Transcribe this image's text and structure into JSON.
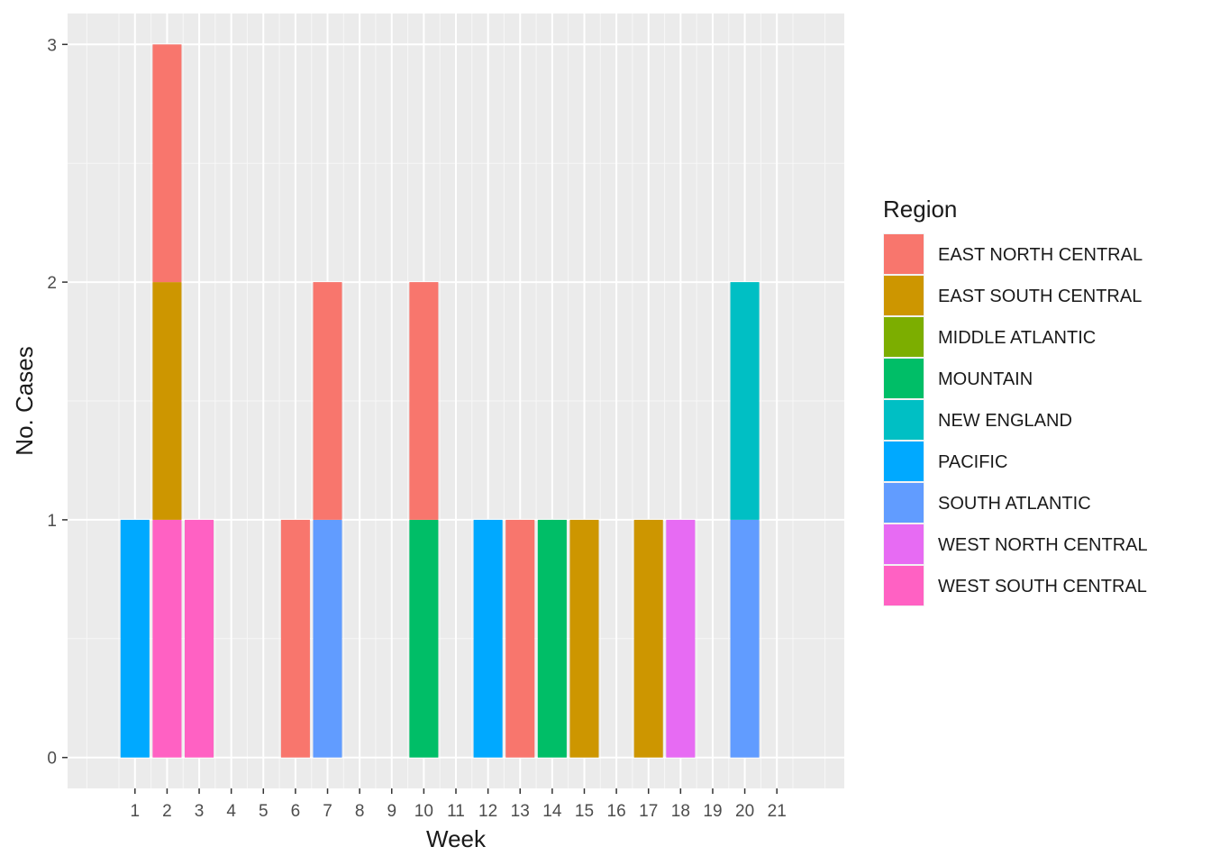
{
  "chart_data": {
    "type": "bar",
    "stacked": true,
    "title": "",
    "xlabel": "Week",
    "ylabel": "No. Cases",
    "categories": [
      "1",
      "2",
      "3",
      "4",
      "5",
      "6",
      "7",
      "8",
      "9",
      "10",
      "11",
      "12",
      "13",
      "14",
      "15",
      "16",
      "17",
      "18",
      "19",
      "20",
      "21"
    ],
    "ylim": [
      -0.13,
      3.13
    ],
    "yticks": [
      0,
      1,
      2,
      3
    ],
    "grid": true,
    "legend_title": "Region",
    "legend_position": "right",
    "series": [
      {
        "name": "EAST NORTH CENTRAL",
        "color": "#F8766D",
        "values": [
          0,
          1,
          0,
          0,
          0,
          1,
          1,
          0,
          0,
          1,
          0,
          0,
          1,
          0,
          0,
          0,
          0,
          0,
          0,
          0,
          0
        ]
      },
      {
        "name": "EAST SOUTH CENTRAL",
        "color": "#CD9600",
        "values": [
          0,
          1,
          0,
          0,
          0,
          0,
          0,
          0,
          0,
          0,
          0,
          0,
          0,
          0,
          1,
          0,
          1,
          0,
          0,
          0,
          0
        ]
      },
      {
        "name": "MIDDLE ATLANTIC",
        "color": "#7CAE00",
        "values": [
          0,
          0,
          0,
          0,
          0,
          0,
          0,
          0,
          0,
          0,
          0,
          0,
          0,
          0,
          0,
          0,
          0,
          0,
          0,
          0,
          0
        ]
      },
      {
        "name": "MOUNTAIN",
        "color": "#00BE67",
        "values": [
          0,
          0,
          0,
          0,
          0,
          0,
          0,
          0,
          0,
          1,
          0,
          0,
          0,
          1,
          0,
          0,
          0,
          0,
          0,
          0,
          0
        ]
      },
      {
        "name": "NEW ENGLAND",
        "color": "#00BFC4",
        "values": [
          0,
          0,
          0,
          0,
          0,
          0,
          0,
          0,
          0,
          0,
          0,
          0,
          0,
          0,
          0,
          0,
          0,
          0,
          0,
          1,
          0
        ]
      },
      {
        "name": "PACIFIC",
        "color": "#00A9FF",
        "values": [
          1,
          0,
          0,
          0,
          0,
          0,
          0,
          0,
          0,
          0,
          0,
          1,
          0,
          0,
          0,
          0,
          0,
          0,
          0,
          0,
          0
        ]
      },
      {
        "name": "SOUTH ATLANTIC",
        "color": "#619CFF",
        "values": [
          0,
          0,
          0,
          0,
          0,
          0,
          1,
          0,
          0,
          0,
          0,
          0,
          0,
          0,
          0,
          0,
          0,
          0,
          0,
          1,
          0
        ]
      },
      {
        "name": "WEST NORTH CENTRAL",
        "color": "#E76BF3",
        "values": [
          0,
          0,
          0,
          0,
          0,
          0,
          0,
          0,
          0,
          0,
          0,
          0,
          0,
          0,
          0,
          0,
          0,
          1,
          0,
          0,
          0
        ]
      },
      {
        "name": "WEST SOUTH CENTRAL",
        "color": "#FF61C3",
        "values": [
          0,
          1,
          1,
          0,
          0,
          0,
          0,
          0,
          0,
          0,
          0,
          0,
          0,
          0,
          0,
          0,
          0,
          0,
          0,
          0,
          0
        ]
      }
    ]
  }
}
